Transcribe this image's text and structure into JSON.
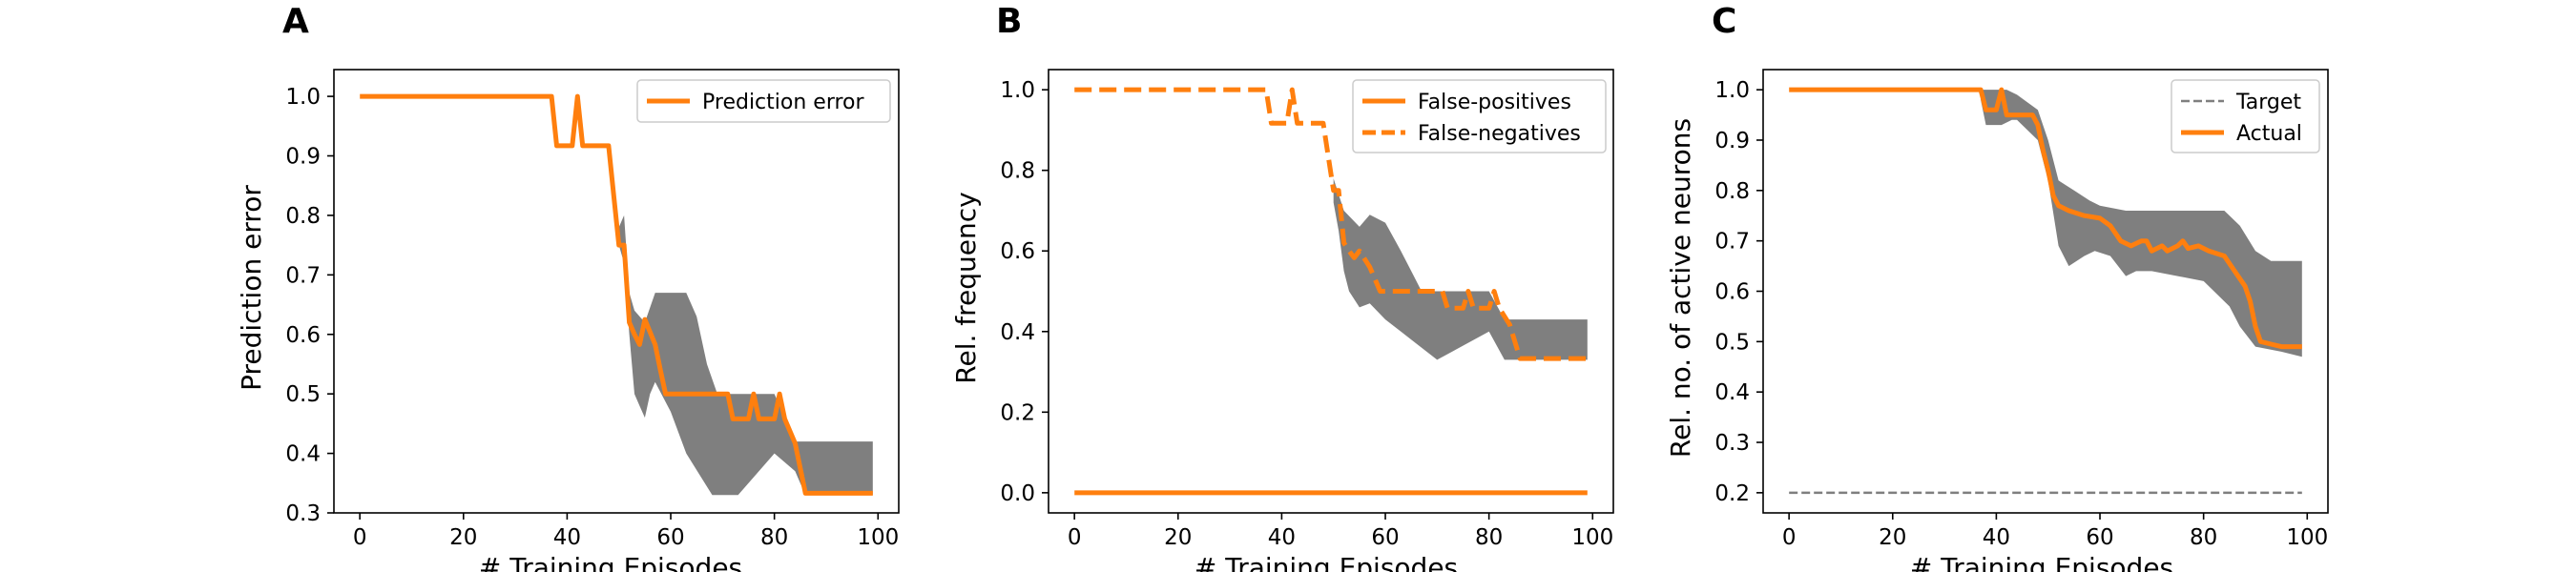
{
  "chart_data": [
    {
      "panel": "A",
      "type": "line",
      "xlabel": "# Training Episodes",
      "ylabel": "Prediction error",
      "xlim": [
        -5,
        104
      ],
      "ylim": [
        0.3,
        1.045
      ],
      "xticks": [
        0,
        20,
        40,
        60,
        80,
        100
      ],
      "yticks": [
        0.3,
        0.4,
        0.5,
        0.6,
        0.7,
        0.8,
        0.9,
        1.0
      ],
      "ytick_decimals": 1,
      "grid": false,
      "legend_position": "top-right",
      "band": {
        "color": "#7f7f7f",
        "upper": [
          [
            50,
            0.78
          ],
          [
            51,
            0.8
          ],
          [
            52,
            0.67
          ],
          [
            53,
            0.64
          ],
          [
            55,
            0.62
          ],
          [
            57,
            0.67
          ],
          [
            63,
            0.67
          ],
          [
            65,
            0.63
          ],
          [
            67,
            0.55
          ],
          [
            69,
            0.5
          ],
          [
            80,
            0.5
          ],
          [
            84,
            0.42
          ],
          [
            99,
            0.42
          ]
        ],
        "lower": [
          [
            99,
            0.33
          ],
          [
            86,
            0.33
          ],
          [
            84,
            0.37
          ],
          [
            80,
            0.4
          ],
          [
            73,
            0.33
          ],
          [
            68,
            0.33
          ],
          [
            63,
            0.4
          ],
          [
            60,
            0.47
          ],
          [
            57,
            0.52
          ],
          [
            56,
            0.5
          ],
          [
            55,
            0.46
          ],
          [
            54,
            0.48
          ],
          [
            53,
            0.5
          ],
          [
            52,
            0.6
          ],
          [
            51,
            0.72
          ],
          [
            50,
            0.75
          ]
        ]
      },
      "series": [
        {
          "name": "Prediction error",
          "color": "#ff7f0e",
          "dash": "solid",
          "points": [
            [
              0,
              1.0
            ],
            [
              37,
              1.0
            ],
            [
              38,
              0.917
            ],
            [
              41,
              0.917
            ],
            [
              42,
              1.0
            ],
            [
              43,
              0.917
            ],
            [
              48,
              0.917
            ],
            [
              49,
              0.833
            ],
            [
              50,
              0.75
            ],
            [
              51,
              0.75
            ],
            [
              52,
              0.62
            ],
            [
              53,
              0.6
            ],
            [
              54,
              0.583
            ],
            [
              55,
              0.625
            ],
            [
              57,
              0.583
            ],
            [
              58,
              0.54
            ],
            [
              59,
              0.5
            ],
            [
              71,
              0.5
            ],
            [
              72,
              0.458
            ],
            [
              75,
              0.458
            ],
            [
              76,
              0.5
            ],
            [
              77,
              0.458
            ],
            [
              80,
              0.458
            ],
            [
              81,
              0.5
            ],
            [
              82,
              0.458
            ],
            [
              84,
              0.417
            ],
            [
              86,
              0.333
            ],
            [
              99,
              0.333
            ]
          ]
        }
      ]
    },
    {
      "panel": "B",
      "type": "line",
      "xlabel": "# Training Episodes",
      "ylabel": "Rel. frequency",
      "xlim": [
        -5,
        104
      ],
      "ylim": [
        -0.05,
        1.05
      ],
      "xticks": [
        0,
        20,
        40,
        60,
        80,
        100
      ],
      "yticks": [
        0.0,
        0.2,
        0.4,
        0.6,
        0.8,
        1.0
      ],
      "ytick_decimals": 1,
      "grid": false,
      "legend_position": "top-right",
      "band": {
        "color": "#7f7f7f",
        "upper": [
          [
            50,
            0.78
          ],
          [
            52,
            0.7
          ],
          [
            55,
            0.66
          ],
          [
            57,
            0.69
          ],
          [
            60,
            0.67
          ],
          [
            63,
            0.6
          ],
          [
            65,
            0.55
          ],
          [
            67,
            0.5
          ],
          [
            80,
            0.5
          ],
          [
            83,
            0.43
          ],
          [
            99,
            0.43
          ]
        ],
        "lower": [
          [
            99,
            0.33
          ],
          [
            86,
            0.33
          ],
          [
            83,
            0.33
          ],
          [
            80,
            0.4
          ],
          [
            70,
            0.33
          ],
          [
            66,
            0.37
          ],
          [
            63,
            0.4
          ],
          [
            60,
            0.43
          ],
          [
            57,
            0.47
          ],
          [
            55,
            0.46
          ],
          [
            53,
            0.5
          ],
          [
            52,
            0.55
          ],
          [
            51,
            0.65
          ],
          [
            50,
            0.72
          ]
        ]
      },
      "series": [
        {
          "name": "False-positives",
          "color": "#ff7f0e",
          "dash": "solid",
          "points": [
            [
              0,
              0.0
            ],
            [
              99,
              0.0
            ]
          ]
        },
        {
          "name": "False-negatives",
          "color": "#ff7f0e",
          "dash": "dashed",
          "points": [
            [
              0,
              1.0
            ],
            [
              37,
              1.0
            ],
            [
              38,
              0.917
            ],
            [
              41,
              0.917
            ],
            [
              42,
              1.0
            ],
            [
              43,
              0.917
            ],
            [
              48,
              0.917
            ],
            [
              49,
              0.833
            ],
            [
              50,
              0.75
            ],
            [
              51,
              0.75
            ],
            [
              52,
              0.62
            ],
            [
              53,
              0.6
            ],
            [
              54,
              0.583
            ],
            [
              55,
              0.6
            ],
            [
              57,
              0.56
            ],
            [
              59,
              0.5
            ],
            [
              71,
              0.5
            ],
            [
              72,
              0.458
            ],
            [
              75,
              0.458
            ],
            [
              76,
              0.5
            ],
            [
              77,
              0.458
            ],
            [
              80,
              0.458
            ],
            [
              81,
              0.5
            ],
            [
              82,
              0.458
            ],
            [
              84,
              0.417
            ],
            [
              86,
              0.333
            ],
            [
              99,
              0.333
            ]
          ]
        }
      ]
    },
    {
      "panel": "C",
      "type": "line",
      "xlabel": "# Training Episodes",
      "ylabel": "Rel. no. of active neurons",
      "xlim": [
        -5,
        104
      ],
      "ylim": [
        0.16,
        1.04
      ],
      "xticks": [
        0,
        20,
        40,
        60,
        80,
        100
      ],
      "yticks": [
        0.2,
        0.3,
        0.4,
        0.5,
        0.6,
        0.7,
        0.8,
        0.9,
        1.0
      ],
      "ytick_decimals": 1,
      "grid": false,
      "legend_position": "top-right",
      "band": {
        "color": "#7f7f7f",
        "upper": [
          [
            37,
            1.0
          ],
          [
            41,
            1.0
          ],
          [
            42,
            1.0
          ],
          [
            44,
            0.99
          ],
          [
            48,
            0.96
          ],
          [
            50,
            0.9
          ],
          [
            52,
            0.82
          ],
          [
            55,
            0.8
          ],
          [
            58,
            0.78
          ],
          [
            60,
            0.77
          ],
          [
            65,
            0.76
          ],
          [
            75,
            0.76
          ],
          [
            80,
            0.76
          ],
          [
            84,
            0.76
          ],
          [
            87,
            0.73
          ],
          [
            90,
            0.68
          ],
          [
            93,
            0.66
          ],
          [
            99,
            0.66
          ]
        ],
        "lower": [
          [
            99,
            0.47
          ],
          [
            95,
            0.48
          ],
          [
            90,
            0.49
          ],
          [
            87,
            0.53
          ],
          [
            85,
            0.57
          ],
          [
            80,
            0.62
          ],
          [
            75,
            0.63
          ],
          [
            70,
            0.64
          ],
          [
            67,
            0.64
          ],
          [
            65,
            0.63
          ],
          [
            62,
            0.67
          ],
          [
            59,
            0.68
          ],
          [
            57,
            0.67
          ],
          [
            54,
            0.65
          ],
          [
            52,
            0.69
          ],
          [
            50,
            0.82
          ],
          [
            48,
            0.9
          ],
          [
            44,
            0.94
          ],
          [
            43,
            0.94
          ],
          [
            41,
            0.93
          ],
          [
            40,
            0.93
          ],
          [
            38,
            0.93
          ],
          [
            37,
            0.98
          ]
        ]
      },
      "series": [
        {
          "name": "Target",
          "color": "#7f7f7f",
          "dash": "dashed",
          "points": [
            [
              0,
              0.2
            ],
            [
              99,
              0.2
            ]
          ]
        },
        {
          "name": "Actual",
          "color": "#ff7f0e",
          "dash": "solid",
          "points": [
            [
              0,
              1.0
            ],
            [
              37,
              1.0
            ],
            [
              38,
              0.96
            ],
            [
              40,
              0.96
            ],
            [
              41,
              1.0
            ],
            [
              42,
              0.95
            ],
            [
              47,
              0.95
            ],
            [
              48,
              0.93
            ],
            [
              49,
              0.88
            ],
            [
              50,
              0.84
            ],
            [
              51,
              0.79
            ],
            [
              52,
              0.77
            ],
            [
              54,
              0.76
            ],
            [
              57,
              0.75
            ],
            [
              60,
              0.745
            ],
            [
              62,
              0.73
            ],
            [
              64,
              0.7
            ],
            [
              66,
              0.69
            ],
            [
              68,
              0.7
            ],
            [
              69,
              0.7
            ],
            [
              70,
              0.68
            ],
            [
              72,
              0.69
            ],
            [
              73,
              0.68
            ],
            [
              75,
              0.69
            ],
            [
              76,
              0.7
            ],
            [
              77,
              0.685
            ],
            [
              79,
              0.69
            ],
            [
              81,
              0.68
            ],
            [
              84,
              0.67
            ],
            [
              86,
              0.64
            ],
            [
              88,
              0.61
            ],
            [
              89,
              0.58
            ],
            [
              90,
              0.53
            ],
            [
              91,
              0.5
            ],
            [
              93,
              0.495
            ],
            [
              95,
              0.49
            ],
            [
              99,
              0.49
            ]
          ]
        }
      ]
    }
  ]
}
